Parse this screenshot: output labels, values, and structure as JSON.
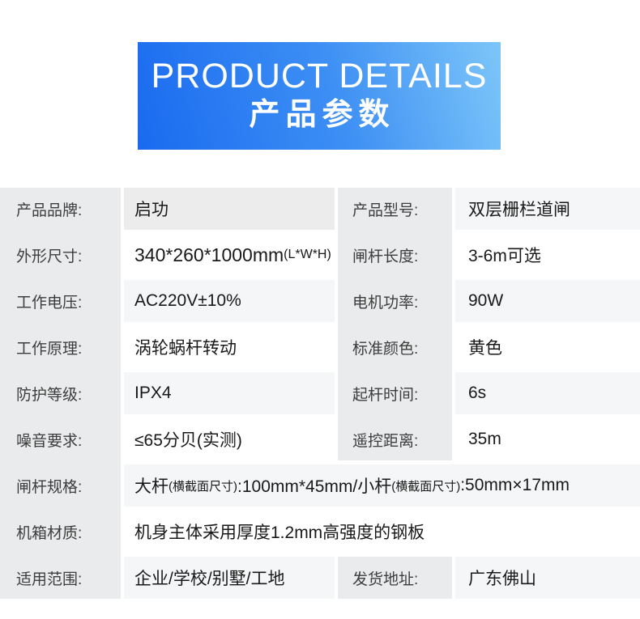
{
  "banner": {
    "title_en": "PRODUCT DETAILS",
    "title_zh": "产品参数"
  },
  "colors": {
    "banner_gradient_start": "#1a6af0",
    "banner_gradient_end": "#7dc6f9",
    "label_column_bg": "#eaebec",
    "row_alt_bg": "#f5f6f7",
    "row_white_bg": "#ffffff"
  },
  "table": {
    "rows": [
      {
        "left_label": "产品品牌:",
        "left_value": "启功",
        "right_label": "产品型号:",
        "right_value": "双层栅栏道闸"
      },
      {
        "left_label": "外形尺寸:",
        "left_value": "340*260*1000mm",
        "left_value_small": "(L*W*H)",
        "right_label": "闸杆长度:",
        "right_value": "3-6m可选"
      },
      {
        "left_label": "工作电压:",
        "left_value": "AC220V±10%",
        "right_label": "电机功率:",
        "right_value": "90W"
      },
      {
        "left_label": "工作原理:",
        "left_value": "涡轮蜗杆转动",
        "right_label": "标准颜色:",
        "right_value": "黄色"
      },
      {
        "left_label": "防护等级:",
        "left_value": "IPX4",
        "right_label": "起杆时间:",
        "right_value": "6s"
      },
      {
        "left_label": "噪音要求:",
        "left_value": "≤65分贝(实测)",
        "right_label": "遥控距离:",
        "right_value": "35m"
      },
      {
        "left_label": "闸杆规格:",
        "span_p1": "大杆",
        "span_s1": "(横截面尺寸)",
        "span_p2": ":100mm*45mm/小杆",
        "span_s2": "(横截面尺寸)",
        "span_p3": ":50mm×17mm"
      },
      {
        "left_label": "机箱材质:",
        "span_value": "机身主体采用厚度1.2mm高强度的钢板"
      },
      {
        "left_label": "适用范围:",
        "left_value": "企业/学校/别墅/工地",
        "right_label": "发货地址:",
        "right_value": "广东佛山"
      }
    ]
  }
}
